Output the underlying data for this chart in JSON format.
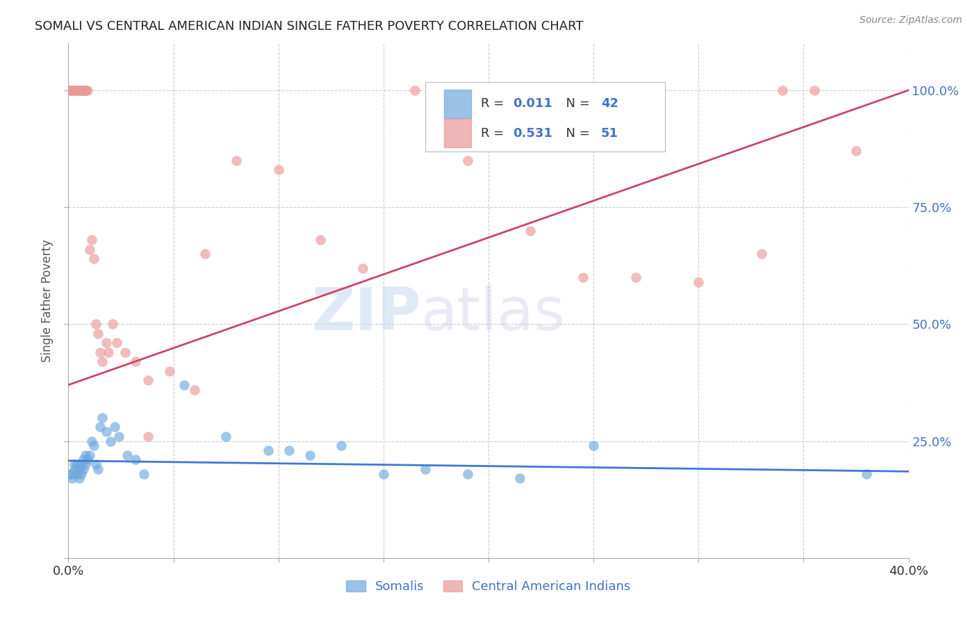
{
  "title": "SOMALI VS CENTRAL AMERICAN INDIAN SINGLE FATHER POVERTY CORRELATION CHART",
  "source": "Source: ZipAtlas.com",
  "ylabel_label": "Single Father Poverty",
  "xlim": [
    0.0,
    0.4
  ],
  "ylim": [
    0.0,
    1.1
  ],
  "somali_color": "#6fa8dc",
  "cai_color": "#ea9999",
  "trendline_somali_color": "#3c78d8",
  "trendline_cai_color": "#cc4466",
  "watermark_zip": "ZIP",
  "watermark_atlas": "atlas",
  "grid_color": "#cccccc",
  "somali_x": [
    0.001,
    0.002,
    0.002,
    0.003,
    0.003,
    0.004,
    0.004,
    0.005,
    0.005,
    0.006,
    0.006,
    0.007,
    0.007,
    0.008,
    0.008,
    0.009,
    0.01,
    0.011,
    0.012,
    0.013,
    0.014,
    0.015,
    0.016,
    0.018,
    0.02,
    0.022,
    0.024,
    0.028,
    0.032,
    0.036,
    0.055,
    0.075,
    0.095,
    0.105,
    0.115,
    0.13,
    0.15,
    0.17,
    0.19,
    0.215,
    0.25,
    0.38
  ],
  "somali_y": [
    0.18,
    0.18,
    0.17,
    0.19,
    0.2,
    0.18,
    0.2,
    0.17,
    0.19,
    0.18,
    0.2,
    0.21,
    0.19,
    0.22,
    0.2,
    0.21,
    0.22,
    0.25,
    0.24,
    0.2,
    0.19,
    0.28,
    0.3,
    0.27,
    0.25,
    0.28,
    0.26,
    0.22,
    0.21,
    0.18,
    0.37,
    0.26,
    0.23,
    0.23,
    0.22,
    0.24,
    0.18,
    0.19,
    0.18,
    0.17,
    0.24,
    0.18
  ],
  "cai_x": [
    0.001,
    0.001,
    0.002,
    0.002,
    0.003,
    0.003,
    0.004,
    0.004,
    0.005,
    0.005,
    0.006,
    0.006,
    0.007,
    0.007,
    0.007,
    0.008,
    0.008,
    0.008,
    0.009,
    0.01,
    0.011,
    0.012,
    0.013,
    0.014,
    0.015,
    0.016,
    0.018,
    0.019,
    0.021,
    0.023,
    0.027,
    0.032,
    0.038,
    0.048,
    0.065,
    0.08,
    0.1,
    0.12,
    0.14,
    0.165,
    0.19,
    0.22,
    0.245,
    0.27,
    0.3,
    0.33,
    0.34,
    0.355,
    0.375,
    0.038,
    0.06
  ],
  "cai_y": [
    1.0,
    1.0,
    1.0,
    1.0,
    1.0,
    1.0,
    1.0,
    1.0,
    1.0,
    1.0,
    1.0,
    1.0,
    1.0,
    1.0,
    1.0,
    1.0,
    1.0,
    1.0,
    1.0,
    0.66,
    0.68,
    0.64,
    0.5,
    0.48,
    0.44,
    0.42,
    0.46,
    0.44,
    0.5,
    0.46,
    0.44,
    0.42,
    0.38,
    0.4,
    0.65,
    0.85,
    0.83,
    0.68,
    0.62,
    1.0,
    0.85,
    0.7,
    0.6,
    0.6,
    0.59,
    0.65,
    1.0,
    1.0,
    0.87,
    0.26,
    0.36
  ],
  "trendline_cai_x0": 0.0,
  "trendline_cai_y0": 0.37,
  "trendline_cai_x1": 0.4,
  "trendline_cai_y1": 1.0,
  "trendline_som_x0": 0.0,
  "trendline_som_y0": 0.208,
  "trendline_som_x1": 0.4,
  "trendline_som_y1": 0.185
}
